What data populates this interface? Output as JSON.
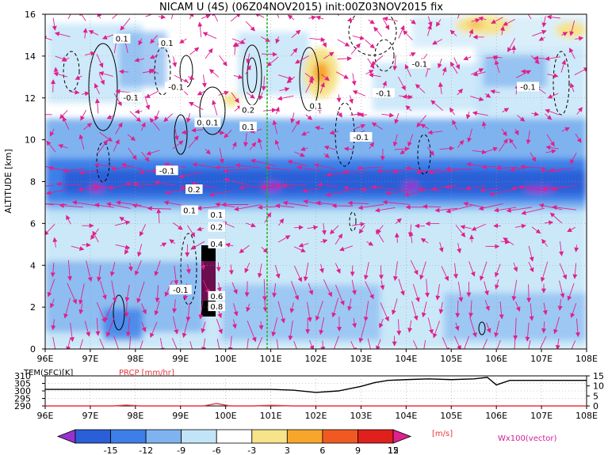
{
  "chart_data": [
    {
      "type": "heatmap",
      "title": "NICAM U (4S) (06Z04NOV2015) init:00Z03NOV2015 fix",
      "xlabel": "",
      "ylabel": "ALTITUDE [km]",
      "x_ticks": [
        "96E",
        "97E",
        "98E",
        "99E",
        "100E",
        "101E",
        "102E",
        "103E",
        "104E",
        "105E",
        "106E",
        "107E",
        "108E"
      ],
      "y_ticks": [
        "0",
        "2",
        "4",
        "6",
        "8",
        "10",
        "12",
        "14",
        "16"
      ],
      "xlim": [
        96,
        108
      ],
      "ylim": [
        0,
        16
      ],
      "marker_longitude": 101,
      "contour_labels": [
        {
          "text": "0.1",
          "x": 97.7,
          "y": 14.8
        },
        {
          "text": "0.1",
          "x": 98.7,
          "y": 14.6
        },
        {
          "text": "-0.1",
          "x": 98.9,
          "y": 12.5
        },
        {
          "text": "-0.1",
          "x": 97.9,
          "y": 12.0
        },
        {
          "text": "0.1",
          "x": 99.5,
          "y": 10.8
        },
        {
          "text": "0.1",
          "x": 99.7,
          "y": 10.8
        },
        {
          "text": "0.2",
          "x": 100.5,
          "y": 11.4
        },
        {
          "text": "0.1",
          "x": 100.5,
          "y": 10.6
        },
        {
          "text": "0.1",
          "x": 102.0,
          "y": 11.6
        },
        {
          "text": "-0.1",
          "x": 103.5,
          "y": 12.2
        },
        {
          "text": "-0.1",
          "x": 104.3,
          "y": 13.6
        },
        {
          "text": "-0.1",
          "x": 103.0,
          "y": 10.1
        },
        {
          "text": "-0.1",
          "x": 106.7,
          "y": 12.5
        },
        {
          "text": "-0.1",
          "x": 98.7,
          "y": 8.5
        },
        {
          "text": "0.2",
          "x": 99.3,
          "y": 7.6
        },
        {
          "text": "0.1",
          "x": 99.2,
          "y": 6.6
        },
        {
          "text": "0.1",
          "x": 99.8,
          "y": 6.4
        },
        {
          "text": "0.2",
          "x": 99.8,
          "y": 5.8
        },
        {
          "text": "0.4",
          "x": 99.8,
          "y": 5.0
        },
        {
          "text": "-0.1",
          "x": 99.0,
          "y": 2.8
        },
        {
          "text": "0.6",
          "x": 99.8,
          "y": 2.5
        },
        {
          "text": "0.8",
          "x": 99.8,
          "y": 2.0
        }
      ]
    },
    {
      "type": "line",
      "left_label": "TEM(SFC)[K]",
      "right_label": "PRCP [mm/hr]",
      "y_ticks_left": [
        "310",
        "305",
        "300",
        "295",
        "290"
      ],
      "y_ticks_right": [
        "15",
        "10",
        "5",
        "0"
      ],
      "x_ticks": [
        "96E",
        "97E",
        "98E",
        "99E",
        "100E",
        "101E",
        "102E",
        "103E",
        "104E",
        "105E",
        "106E",
        "107E",
        "108E"
      ],
      "ylim_left": [
        290,
        310
      ],
      "ylim_right": [
        0,
        15
      ],
      "series": [
        {
          "x": [
            96,
            97,
            98,
            99,
            100,
            101,
            101.5,
            102,
            102.5,
            103,
            103.3,
            103.6,
            104,
            104.5,
            105,
            105.5,
            105.8,
            106,
            106.3,
            107,
            108
          ],
          "y": [
            301,
            301,
            301,
            301,
            301,
            301,
            300.5,
            299,
            300,
            303,
            305.5,
            307,
            307.5,
            308,
            307.5,
            308,
            309,
            304,
            307,
            307,
            307
          ]
        },
        {
          "x": [
            96,
            97.5,
            97.8,
            98.1,
            99.5,
            99.8,
            100.1,
            100.6,
            101,
            101.5,
            102,
            108
          ],
          "y": [
            0,
            0,
            0.4,
            0,
            0,
            1.2,
            0,
            0,
            0.3,
            0,
            0,
            0
          ]
        }
      ]
    },
    {
      "type": "colorbar",
      "ticks": [
        "-15",
        "-12",
        "-9",
        "-6",
        "-3",
        "3",
        "6",
        "9",
        "12",
        "15"
      ],
      "unit": "[m/s]",
      "colors": [
        "#9932cc",
        "#2a5fd8",
        "#3c7fe8",
        "#7fb3f0",
        "#c2e4f7",
        "#ffffff",
        "#f6e38a",
        "#f7a62b",
        "#f05a22",
        "#e0201c",
        "#b01010"
      ],
      "vector_label": "Wx100(vector)"
    }
  ]
}
